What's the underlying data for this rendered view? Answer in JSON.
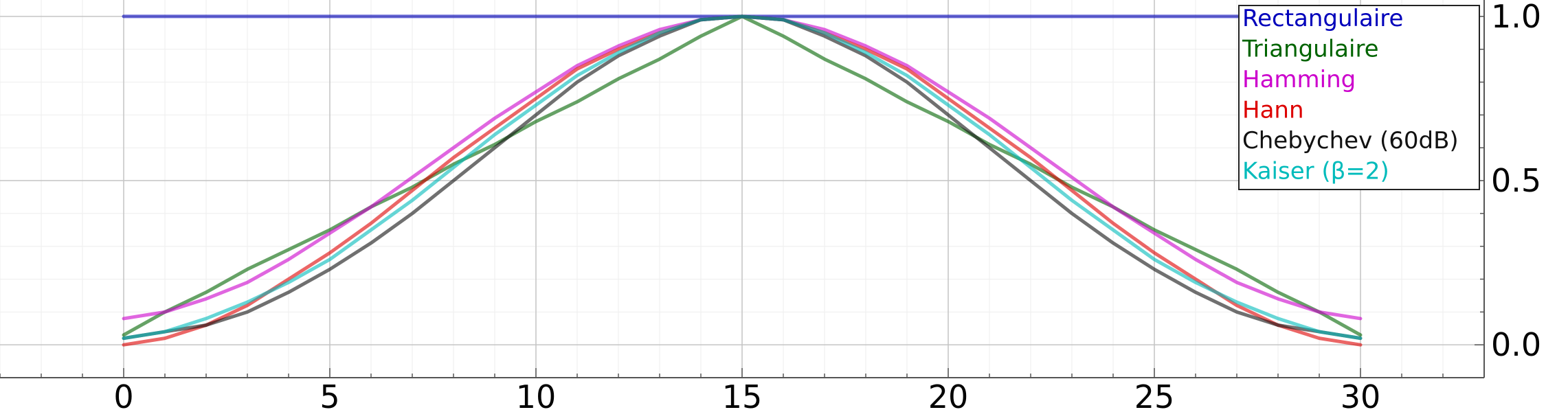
{
  "chart_data": {
    "type": "line",
    "title": "",
    "xlabel": "",
    "ylabel": "",
    "xlim": [
      -3,
      33
    ],
    "ylim": [
      -0.1,
      1.05
    ],
    "x_ticks": [
      0,
      5,
      10,
      15,
      20,
      25,
      30
    ],
    "x_tick_labels": [
      "0",
      "5",
      "10",
      "15",
      "20",
      "25",
      "30"
    ],
    "y_ticks": [
      0.0,
      0.5,
      1.0
    ],
    "y_tick_labels": [
      "0.0",
      "0.5",
      "1.0"
    ],
    "y_axis_side": "right",
    "grid": true,
    "legend_position": "top-right",
    "x": [
      0,
      1,
      2,
      3,
      4,
      5,
      6,
      7,
      8,
      9,
      10,
      11,
      12,
      13,
      14,
      15,
      16,
      17,
      18,
      19,
      20,
      21,
      22,
      23,
      24,
      25,
      26,
      27,
      28,
      29,
      30
    ],
    "series": [
      {
        "name": "Rectangulaire",
        "color": "#0000bb",
        "values": [
          1,
          1,
          1,
          1,
          1,
          1,
          1,
          1,
          1,
          1,
          1,
          1,
          1,
          1,
          1,
          1,
          1,
          1,
          1,
          1,
          1,
          1,
          1,
          1,
          1,
          1,
          1,
          1,
          1,
          1,
          1
        ]
      },
      {
        "name": "Triangulaire",
        "color": "#006400",
        "values": [
          0.03,
          0.1,
          0.16,
          0.23,
          0.29,
          0.35,
          0.42,
          0.48,
          0.55,
          0.61,
          0.68,
          0.74,
          0.81,
          0.87,
          0.94,
          1.0,
          0.94,
          0.87,
          0.81,
          0.74,
          0.68,
          0.61,
          0.55,
          0.48,
          0.42,
          0.35,
          0.29,
          0.23,
          0.16,
          0.1,
          0.03
        ]
      },
      {
        "name": "Hamming",
        "color": "#cc00cc",
        "values": [
          0.08,
          0.1,
          0.14,
          0.19,
          0.26,
          0.34,
          0.42,
          0.51,
          0.6,
          0.69,
          0.77,
          0.85,
          0.91,
          0.96,
          0.99,
          1.0,
          0.99,
          0.96,
          0.91,
          0.85,
          0.77,
          0.69,
          0.6,
          0.51,
          0.42,
          0.34,
          0.26,
          0.19,
          0.14,
          0.1,
          0.08
        ]
      },
      {
        "name": "Hann",
        "color": "#dd0000",
        "values": [
          0.0,
          0.02,
          0.06,
          0.12,
          0.2,
          0.28,
          0.37,
          0.47,
          0.57,
          0.66,
          0.75,
          0.84,
          0.9,
          0.95,
          0.99,
          1.0,
          0.99,
          0.95,
          0.9,
          0.84,
          0.75,
          0.66,
          0.57,
          0.47,
          0.37,
          0.28,
          0.2,
          0.12,
          0.06,
          0.02,
          0.0
        ]
      },
      {
        "name": "Chebychev (60dB)",
        "color": "#111111",
        "values": [
          0.02,
          0.04,
          0.06,
          0.1,
          0.16,
          0.23,
          0.31,
          0.4,
          0.5,
          0.6,
          0.7,
          0.8,
          0.88,
          0.94,
          0.99,
          1.0,
          0.99,
          0.94,
          0.88,
          0.8,
          0.7,
          0.6,
          0.5,
          0.4,
          0.31,
          0.23,
          0.16,
          0.1,
          0.06,
          0.04,
          0.02
        ]
      },
      {
        "name": "Kaiser (β=2)",
        "color": "#00bbbb",
        "values": [
          0.02,
          0.04,
          0.08,
          0.13,
          0.19,
          0.26,
          0.35,
          0.44,
          0.54,
          0.64,
          0.73,
          0.82,
          0.89,
          0.95,
          0.99,
          1.0,
          0.99,
          0.95,
          0.89,
          0.82,
          0.73,
          0.64,
          0.54,
          0.44,
          0.35,
          0.26,
          0.19,
          0.13,
          0.08,
          0.04,
          0.02
        ]
      }
    ]
  }
}
